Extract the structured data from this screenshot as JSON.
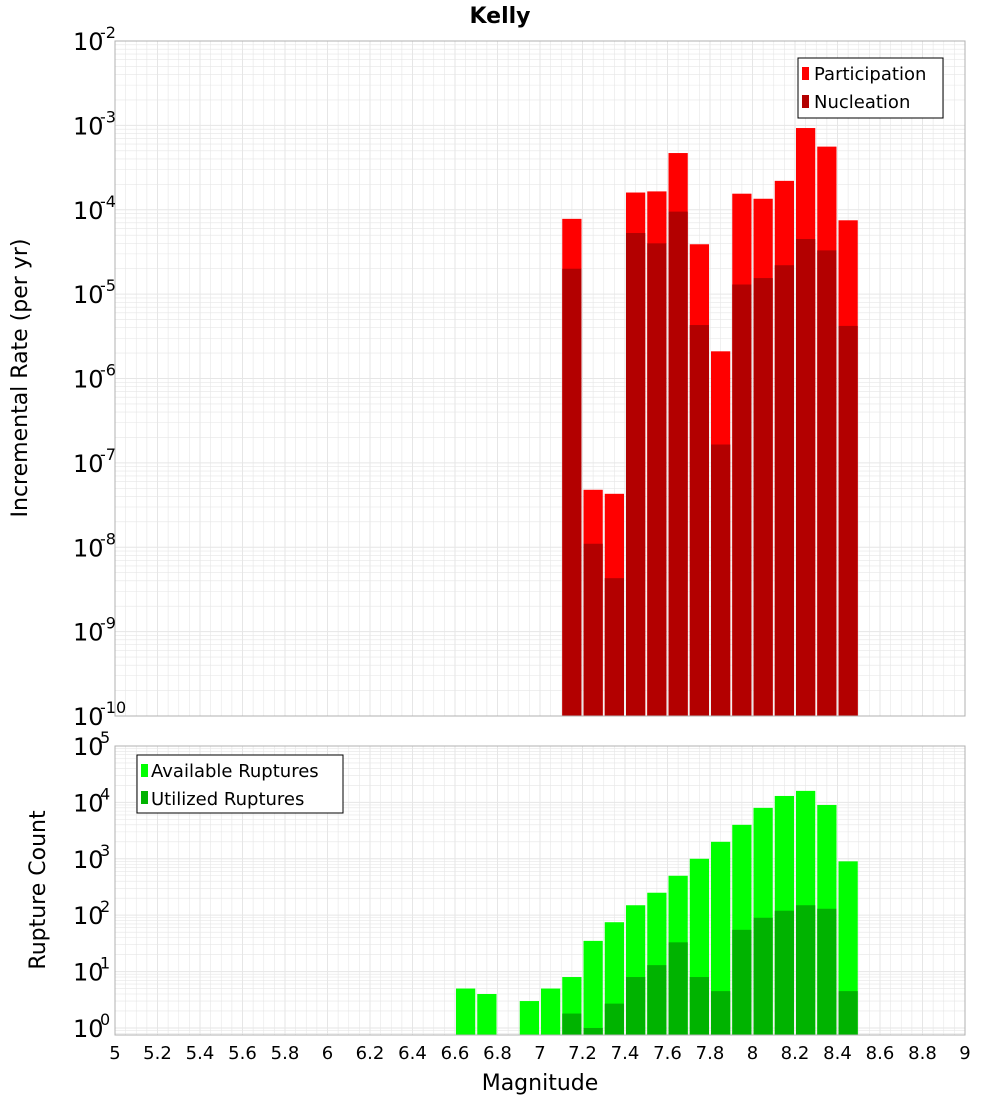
{
  "title": "Kelly",
  "xlabel": "Magnitude",
  "x_ticks": [
    "5",
    "5.2",
    "5.4",
    "5.6",
    "5.8",
    "6",
    "6.2",
    "6.4",
    "6.6",
    "6.8",
    "7",
    "7.2",
    "7.4",
    "7.6",
    "7.8",
    "8",
    "8.2",
    "8.4",
    "8.6",
    "8.8",
    "9"
  ],
  "colors": {
    "participation": "#ff0000",
    "nucleation": "#b30000",
    "available": "#00ff00",
    "utilized": "#00b300",
    "grid": "#e6e6e6",
    "frame": "#b0b0b0"
  },
  "chart_data": [
    {
      "type": "bar",
      "panel": "top",
      "ylabel": "Incremental Rate (per yr)",
      "yscale": "log",
      "ylim": [
        1e-10,
        0.01
      ],
      "xlim": [
        5,
        9
      ],
      "y_ticks": [
        {
          "base": "10",
          "exp": "-10"
        },
        {
          "base": "10",
          "exp": "-9"
        },
        {
          "base": "10",
          "exp": "-8"
        },
        {
          "base": "10",
          "exp": "-7"
        },
        {
          "base": "10",
          "exp": "-6"
        },
        {
          "base": "10",
          "exp": "-5"
        },
        {
          "base": "10",
          "exp": "-4"
        },
        {
          "base": "10",
          "exp": "-3"
        },
        {
          "base": "10",
          "exp": "-2"
        }
      ],
      "legend_position": "top-right",
      "x": [
        7.15,
        7.25,
        7.35,
        7.45,
        7.55,
        7.65,
        7.75,
        7.85,
        7.95,
        8.05,
        8.15,
        8.25,
        8.35,
        8.45
      ],
      "series": [
        {
          "name": "Participation",
          "values": [
            7.8e-05,
            4.8e-08,
            4.3e-08,
            0.00016,
            0.000165,
            0.00047,
            3.9e-05,
            2.1e-06,
            0.000155,
            0.000135,
            0.00022,
            0.00093,
            0.00056,
            7.5e-05
          ]
        },
        {
          "name": "Nucleation",
          "values": [
            2e-05,
            1.1e-08,
            4.3e-09,
            5.3e-05,
            4e-05,
            9.5e-05,
            4.3e-06,
            1.65e-07,
            1.3e-05,
            1.55e-05,
            2.2e-05,
            4.5e-05,
            3.3e-05,
            4.2e-06
          ]
        }
      ]
    },
    {
      "type": "bar",
      "panel": "bottom",
      "ylabel": "Rupture Count",
      "yscale": "log",
      "ylim": [
        0.75,
        100000
      ],
      "xlim": [
        5,
        9
      ],
      "y_ticks": [
        {
          "base": "10",
          "exp": "0"
        },
        {
          "base": "10",
          "exp": "1"
        },
        {
          "base": "10",
          "exp": "2"
        },
        {
          "base": "10",
          "exp": "3"
        },
        {
          "base": "10",
          "exp": "4"
        },
        {
          "base": "10",
          "exp": "5"
        }
      ],
      "legend_position": "top-left",
      "x": [
        6.65,
        6.75,
        6.85,
        6.95,
        7.05,
        7.15,
        7.25,
        7.35,
        7.45,
        7.55,
        7.65,
        7.75,
        7.85,
        7.95,
        8.05,
        8.15,
        8.25,
        8.35,
        8.45
      ],
      "series": [
        {
          "name": "Available Ruptures",
          "values": [
            5,
            4,
            0,
            3,
            5,
            8,
            35,
            75,
            150,
            250,
            500,
            1000,
            2000,
            4000,
            8000,
            13000,
            16000,
            9000,
            900
          ]
        },
        {
          "name": "Utilized Ruptures",
          "values": [
            0,
            0,
            0,
            0,
            0,
            1.8,
            1,
            2.7,
            8,
            13,
            33,
            8,
            4.5,
            55,
            90,
            120,
            150,
            130,
            4.5
          ]
        }
      ]
    }
  ]
}
